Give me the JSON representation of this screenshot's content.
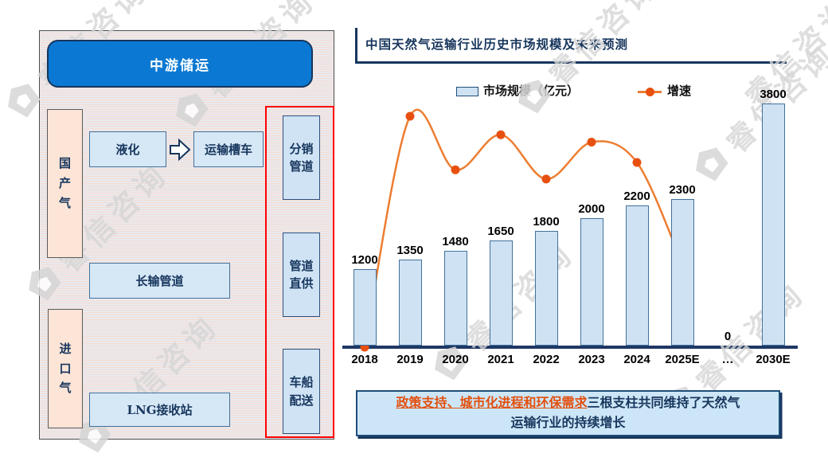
{
  "watermark": {
    "text": "睿信咨询"
  },
  "diagram": {
    "header": "中游储运",
    "domestic_gas": "国\n产\n气",
    "imported_gas": "进\n口\n气",
    "liquefaction": "液化",
    "tanker": "运输槽车",
    "long_pipeline": "长输管道",
    "lng_terminal": "LNG接收站",
    "channels": [
      "分销\n管道",
      "管道\n直供",
      "车船\n配送"
    ]
  },
  "chart_title": "中国天然气运输行业历史市场规模及未来预测",
  "legend": {
    "bar": "市场规模（亿元）",
    "line": "增速"
  },
  "chart_data": {
    "type": "bar+line",
    "title": "中国天然气运输行业历史市场规模及未来预测",
    "categories": [
      "2018",
      "2019",
      "2020",
      "2021",
      "2022",
      "2023",
      "2024",
      "2025E",
      "…",
      "2030E"
    ],
    "series": [
      {
        "name": "市场规模（亿元）",
        "type": "bar",
        "values": [
          1200,
          1350,
          1480,
          1650,
          1800,
          2000,
          2200,
          2300,
          0,
          3800
        ]
      },
      {
        "name": "增速",
        "type": "line",
        "values_pct": [
          0,
          12.5,
          9.6,
          11.5,
          9.1,
          11.1,
          10.0,
          4.5,
          null,
          null
        ]
      }
    ],
    "value_labels": [
      "1200",
      "1350",
      "1480",
      "1650",
      "1800",
      "2000",
      "2200",
      "2300",
      "0",
      "3800"
    ],
    "ylim": [
      0,
      4000
    ],
    "grid": false,
    "legend_position": "top",
    "bar_fill": "#cfe2f3",
    "bar_border": "#41719c",
    "line_color": "#ed7d31",
    "marker_color": "#e8500f",
    "axis_color": "#1f3864"
  },
  "insight": {
    "highlight": "政策支持、城市化进程和环保需求",
    "rest": "三根支柱共同维持了天然气\n运输行业的持续增长"
  },
  "colors": {
    "navy": "#17365d",
    "header_blue": "#0b79d3",
    "peach": "#fce4d6",
    "light_blue": "#d6e7f6",
    "red_frame": "#ff0000",
    "highlight_orange": "#e2500f"
  }
}
